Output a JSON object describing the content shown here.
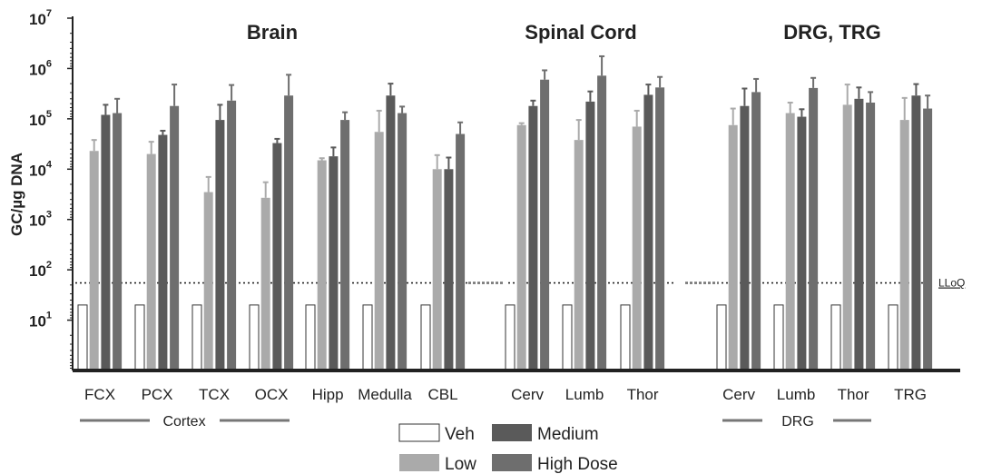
{
  "chart_data": {
    "type": "bar",
    "ylabel": "GC/µg DNA",
    "yscale": "log",
    "ylim_exp": [
      0,
      7
    ],
    "ytick_exponents": [
      1,
      2,
      3,
      4,
      5,
      6,
      7
    ],
    "ytick_base": "10",
    "lloq": {
      "label": "LLoQ",
      "value": 55
    },
    "group_titles": [
      "Brain",
      "Spinal Cord",
      "DRG, TRG"
    ],
    "subgroup_labels": [
      "Cortex",
      "DRG"
    ],
    "series": [
      {
        "name": "Veh",
        "color": "#ffffff"
      },
      {
        "name": "Low",
        "color": "#aaaaaa"
      },
      {
        "name": "Medium",
        "color": "#5a5a5a"
      },
      {
        "name": "High Dose",
        "color": "#6e6e6e"
      }
    ],
    "legend_position": "bottom-center",
    "groups": [
      {
        "title": "Brain",
        "categories": [
          {
            "label": "FCX",
            "values": [
              20,
              23000,
              120000,
              130000
            ],
            "errors": [
              null,
              38000,
              190000,
              250000
            ]
          },
          {
            "label": "PCX",
            "values": [
              20,
              20000,
              48000,
              180000
            ],
            "errors": [
              null,
              35000,
              58000,
              480000
            ]
          },
          {
            "label": "TCX",
            "values": [
              20,
              3500,
              95000,
              230000
            ],
            "errors": [
              null,
              7000,
              190000,
              470000
            ]
          },
          {
            "label": "OCX",
            "values": [
              20,
              2700,
              33000,
              290000
            ],
            "errors": [
              null,
              5500,
              40000,
              750000
            ]
          },
          {
            "label": "Hipp",
            "values": [
              20,
              15000,
              18000,
              95000
            ],
            "errors": [
              null,
              16500,
              27000,
              135000
            ]
          },
          {
            "label": "Medulla",
            "values": [
              20,
              55000,
              290000,
              130000
            ],
            "errors": [
              null,
              145000,
              500000,
              175000
            ]
          },
          {
            "label": "CBL",
            "values": [
              20,
              10000,
              10000,
              50000
            ],
            "errors": [
              null,
              19000,
              17000,
              85000
            ]
          }
        ]
      },
      {
        "title": "Spinal Cord",
        "categories": [
          {
            "label": "Cerv",
            "values": [
              20,
              75000,
              180000,
              600000
            ],
            "errors": [
              null,
              82000,
              230000,
              920000
            ]
          },
          {
            "label": "Lumb",
            "values": [
              20,
              38000,
              220000,
              720000
            ],
            "errors": [
              null,
              95000,
              350000,
              1750000
            ]
          },
          {
            "label": "Thor",
            "values": [
              20,
              70000,
              300000,
              420000
            ],
            "errors": [
              null,
              145000,
              480000,
              680000
            ]
          }
        ]
      },
      {
        "title": "DRG, TRG",
        "categories": [
          {
            "label": "Cerv",
            "values": [
              20,
              75000,
              180000,
              340000
            ],
            "errors": [
              null,
              160000,
              400000,
              620000
            ]
          },
          {
            "label": "Lumb",
            "values": [
              20,
              130000,
              110000,
              410000
            ],
            "errors": [
              null,
              210000,
              155000,
              650000
            ]
          },
          {
            "label": "Thor",
            "values": [
              20,
              190000,
              250000,
              210000
            ],
            "errors": [
              null,
              480000,
              420000,
              340000
            ]
          },
          {
            "label": "TRG",
            "values": [
              20,
              95000,
              290000,
              160000
            ],
            "errors": [
              null,
              260000,
              490000,
              290000
            ]
          }
        ]
      }
    ]
  }
}
